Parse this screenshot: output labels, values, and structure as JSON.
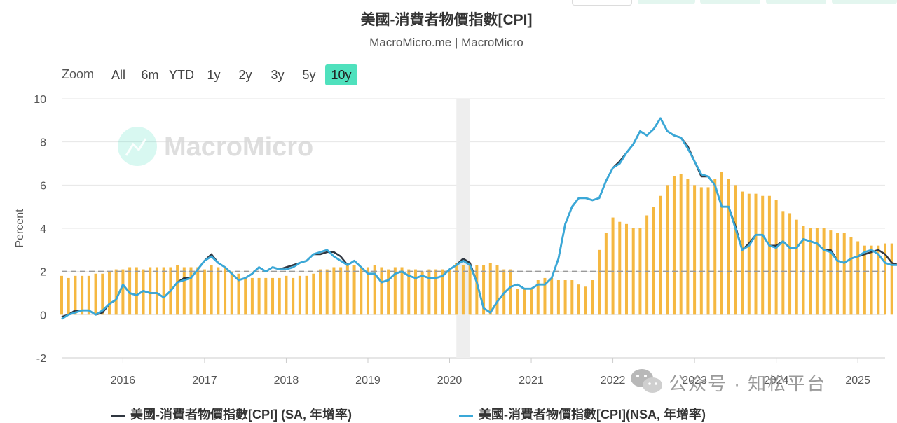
{
  "title": "美國-消費者物價指數[CPI]",
  "subtitle": "MacroMicro.me | MacroMicro",
  "zoom": {
    "label": "Zoom",
    "buttons": [
      "All",
      "6m",
      "YTD",
      "1y",
      "2y",
      "3y",
      "5y",
      "10y"
    ],
    "active": "10y"
  },
  "watermark": "MacroMicro",
  "wechat_watermark": "公众号 · 知松平台",
  "colors": {
    "bars": "#f5b841",
    "sa_line": "#2f3640",
    "nsa_line": "#3aa8d8",
    "reference_line": "#9a9a9a",
    "zoom_active": "#4fe1bd",
    "shade": "#eeeeee"
  },
  "legend": [
    {
      "label": "美國-消費者物價指數[CPI] (SA, 年增率)",
      "color": "#2f3640"
    },
    {
      "label": "美國-消費者物價指數[CPI](NSA, 年增率)",
      "color": "#3aa8d8"
    }
  ],
  "chart_data": {
    "type": "line",
    "ylabel": "Percent",
    "ylim": [
      -2,
      10
    ],
    "yticks": [
      "-2",
      "0",
      "2",
      "4",
      "6",
      "8",
      "10"
    ],
    "xlim": [
      "2015-04",
      "2025-05"
    ],
    "x_tick_labels": [
      "2016",
      "2017",
      "2018",
      "2019",
      "2020",
      "2021",
      "2022",
      "2023",
      "2024",
      "2025"
    ],
    "grid": true,
    "reference_line": 2,
    "shaded_period": [
      "2020-02",
      "2020-04"
    ],
    "bars": {
      "start": "2015-04",
      "step": "monthly",
      "values": [
        1.8,
        1.7,
        1.8,
        1.8,
        1.8,
        1.9,
        1.9,
        2.0,
        2.1,
        2.1,
        2.2,
        2.2,
        2.1,
        2.2,
        2.2,
        2.2,
        2.2,
        2.3,
        2.2,
        2.2,
        2.2,
        2.1,
        2.3,
        2.2,
        2.2,
        2.0,
        1.9,
        1.7,
        1.7,
        1.7,
        1.7,
        1.7,
        1.7,
        1.8,
        1.7,
        1.8,
        1.8,
        1.9,
        2.1,
        2.1,
        2.2,
        2.2,
        2.3,
        2.3,
        2.2,
        2.2,
        2.3,
        2.2,
        2.1,
        2.2,
        2.2,
        2.1,
        2.1,
        2.0,
        2.1,
        2.1,
        2.1,
        2.1,
        2.4,
        2.3,
        2.3,
        2.3,
        2.3,
        2.4,
        2.3,
        2.1,
        2.1,
        1.2,
        1.2,
        1.2,
        1.6,
        1.7,
        1.7,
        1.6,
        1.6,
        1.6,
        1.4,
        1.3,
        1.6,
        3.0,
        3.8,
        4.5,
        4.3,
        4.2,
        4.0,
        4.0,
        4.6,
        5.0,
        5.5,
        6.0,
        6.4,
        6.5,
        6.3,
        6.0,
        5.9,
        5.9,
        6.3,
        6.6,
        6.3,
        6.0,
        5.7,
        5.6,
        5.6,
        5.5,
        5.5,
        5.3,
        4.8,
        4.7,
        4.4,
        4.1,
        4.0,
        4.0,
        4.0,
        3.9,
        3.8,
        3.8,
        3.6,
        3.4,
        3.2,
        3.2,
        3.2,
        3.3,
        3.3,
        3.3,
        3.3,
        3.3,
        3.2,
        3.3,
        3.1,
        2.8,
        2.8,
        2.8
      ]
    },
    "series": [
      {
        "name": "美國-消費者物價指數[CPI] (SA, 年增率)",
        "start": "2015-04",
        "step": "monthly",
        "values": [
          -0.1,
          0.0,
          0.2,
          0.2,
          0.2,
          0.0,
          0.1,
          0.5,
          0.7,
          1.4,
          1.0,
          0.9,
          1.1,
          1.0,
          1.0,
          0.8,
          1.1,
          1.5,
          1.7,
          1.7,
          2.1,
          2.5,
          2.8,
          2.4,
          2.2,
          1.9,
          1.6,
          1.7,
          1.9,
          2.2,
          2.0,
          2.2,
          2.1,
          2.2,
          2.3,
          2.4,
          2.5,
          2.8,
          2.8,
          2.9,
          2.9,
          2.7,
          2.3,
          2.5,
          2.2,
          1.9,
          1.9,
          1.5,
          1.6,
          1.9,
          2.0,
          1.8,
          1.7,
          1.8,
          1.7,
          1.7,
          1.8,
          2.1,
          2.3,
          2.6,
          2.4,
          1.5,
          0.3,
          0.1,
          0.6,
          1.0,
          1.3,
          1.4,
          1.2,
          1.2,
          1.4,
          1.4,
          1.7,
          2.6,
          4.2,
          5.0,
          5.4,
          5.4,
          5.3,
          5.4,
          6.2,
          6.8,
          7.1,
          7.5,
          7.9,
          8.5,
          8.3,
          8.6,
          9.1,
          8.5,
          8.3,
          8.2,
          7.8,
          7.1,
          6.4,
          6.4,
          6.0,
          5.0,
          5.0,
          4.1,
          3.0,
          3.3,
          3.7,
          3.7,
          3.2,
          3.2,
          3.4,
          3.1,
          3.1,
          3.5,
          3.4,
          3.3,
          3.0,
          3.0,
          2.5,
          2.4,
          2.6,
          2.7,
          2.8,
          2.9,
          3.0,
          2.8,
          2.4,
          2.3,
          2.3,
          2.4
        ]
      },
      {
        "name": "美國-消費者物價指數[CPI](NSA, 年增率)",
        "start": "2015-04",
        "step": "monthly",
        "values": [
          -0.2,
          0.0,
          0.1,
          0.2,
          0.2,
          0.0,
          0.2,
          0.5,
          0.7,
          1.4,
          1.0,
          0.9,
          1.1,
          1.0,
          1.0,
          0.8,
          1.1,
          1.5,
          1.6,
          1.7,
          2.1,
          2.5,
          2.7,
          2.4,
          2.2,
          1.9,
          1.6,
          1.7,
          1.9,
          2.2,
          2.0,
          2.2,
          2.1,
          2.1,
          2.2,
          2.4,
          2.5,
          2.8,
          2.9,
          3.0,
          2.7,
          2.5,
          2.3,
          2.5,
          2.2,
          1.9,
          1.9,
          1.5,
          1.6,
          1.9,
          2.0,
          1.8,
          1.7,
          1.8,
          1.7,
          1.7,
          1.8,
          2.1,
          2.3,
          2.5,
          2.3,
          1.5,
          0.3,
          0.1,
          0.6,
          1.0,
          1.3,
          1.4,
          1.2,
          1.2,
          1.4,
          1.4,
          1.7,
          2.6,
          4.2,
          5.0,
          5.4,
          5.4,
          5.3,
          5.4,
          6.2,
          6.8,
          7.0,
          7.5,
          7.9,
          8.5,
          8.3,
          8.6,
          9.1,
          8.5,
          8.3,
          8.2,
          7.7,
          7.1,
          6.5,
          6.4,
          6.0,
          5.0,
          5.0,
          4.0,
          3.0,
          3.2,
          3.7,
          3.7,
          3.2,
          3.1,
          3.4,
          3.1,
          3.1,
          3.5,
          3.4,
          3.3,
          3.0,
          2.9,
          2.5,
          2.4,
          2.6,
          2.7,
          2.9,
          3.0,
          2.8,
          2.4,
          2.3,
          2.3,
          2.4
        ]
      }
    ]
  }
}
